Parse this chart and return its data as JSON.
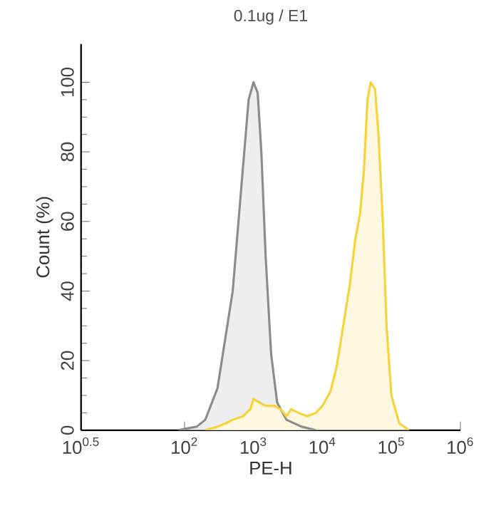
{
  "chart_data": {
    "type": "area",
    "title": "0.1ug / E1",
    "xlabel": "PE-H",
    "ylabel": "Count (%)",
    "log": "x",
    "xlim": [
      3.1623,
      1000000
    ],
    "ylim": [
      0,
      111
    ],
    "xticks": [
      {
        "value": 3.1623,
        "label": "10$^{0.5}$"
      },
      {
        "value": 100,
        "label": "10$^{2}$"
      },
      {
        "value": 1000,
        "label": "10$^{3}$"
      },
      {
        "value": 10000,
        "label": "10$^{4}$"
      },
      {
        "value": 100000,
        "label": "10$^{5}$"
      },
      {
        "value": 1000000,
        "label": "10$^{6}$"
      }
    ],
    "yticks": [
      0,
      20,
      40,
      60,
      80,
      100
    ],
    "grid": false,
    "series": [
      {
        "color": "#8c8c8c",
        "x": [
          80,
          150,
          200,
          300,
          500,
          700,
          850,
          1000,
          1150,
          1300,
          1500,
          1800,
          2200,
          3000,
          5000,
          8000
        ],
        "values": [
          0,
          1,
          3,
          12,
          40,
          75,
          95,
          100,
          97,
          80,
          50,
          22,
          8,
          3,
          1,
          0
        ]
      },
      {
        "color": "#f5d33a",
        "x": [
          200,
          300,
          400,
          500,
          700,
          900,
          1000,
          1200,
          1500,
          2000,
          2500,
          3000,
          3500,
          4500,
          6000,
          8000,
          10000,
          13000,
          16000,
          20000,
          25000,
          30000,
          35000,
          40000,
          45000,
          50000,
          58000,
          65000,
          75000,
          85000,
          100000,
          130000,
          180000
        ],
        "values": [
          0,
          1,
          2,
          3,
          4,
          6,
          9,
          8,
          7,
          7,
          6,
          4,
          6,
          5,
          4,
          5,
          7,
          11,
          18,
          30,
          42,
          55,
          62,
          75,
          95,
          100,
          98,
          85,
          60,
          30,
          10,
          2,
          0
        ]
      }
    ]
  }
}
